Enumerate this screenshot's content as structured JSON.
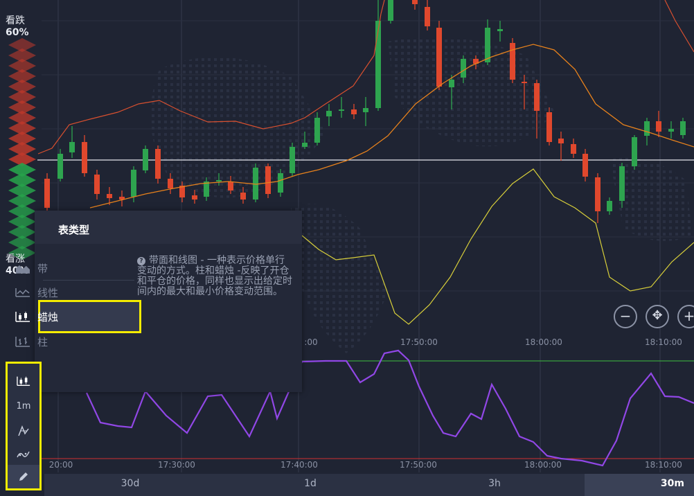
{
  "sentiment": {
    "bear_label": "看跌",
    "bear_pct": "60%",
    "bull_label": "看涨",
    "bull_pct": "40%",
    "bear_color": "#c0392b",
    "bull_color": "#27a34b"
  },
  "chart_type_popup": {
    "title": "表类型",
    "options": [
      {
        "label": "带",
        "icon": "area-chart-icon",
        "selected": false
      },
      {
        "label": "线性",
        "icon": "line-chart-icon",
        "selected": false
      },
      {
        "label": "蜡烛",
        "icon": "candlestick-icon",
        "selected": true
      },
      {
        "label": "柱",
        "icon": "bar-chart-icon",
        "selected": false
      }
    ],
    "description": "带面和线图 - 一种表示价格单行变动的方式。柱和蜡烛 -反映了开仓和平仓的价格，同样也显示出给定时间内的最大和最小价格变动范围。"
  },
  "toolbar": {
    "items": [
      {
        "name": "chart-type-button",
        "icon": "candlestick-icon"
      },
      {
        "name": "timeframe-button",
        "label": "1m"
      },
      {
        "name": "indicators-button",
        "icon": "indicator-icon"
      },
      {
        "name": "analysis-button",
        "icon": "wave-icon"
      },
      {
        "name": "drawing-tool-button",
        "icon": "pencil-icon"
      }
    ]
  },
  "time_axis": {
    "main_ticks": [
      "",
      ":00",
      "17:50:00",
      "18:00:00",
      "18:10:00"
    ],
    "lower_ticks": [
      "20:00",
      "17:30:00",
      "17:40:00",
      "17:50:00",
      "18:00:00",
      "18:10:00"
    ]
  },
  "timeframes": {
    "items": [
      "30d",
      "1d",
      "3h",
      "30m"
    ],
    "active": "30m"
  },
  "zoom": {
    "minus": "−",
    "center": "✥",
    "plus": "+"
  },
  "colors": {
    "up": "#2ea44f",
    "down": "#e0482d",
    "bollinger_upper": "#d9502f",
    "ma": "#e8821c",
    "bollinger_lower": "#d8cf3a",
    "oscillator": "#9147e6",
    "level_high": "#3fbf3f",
    "level_low": "#d03030"
  }
}
